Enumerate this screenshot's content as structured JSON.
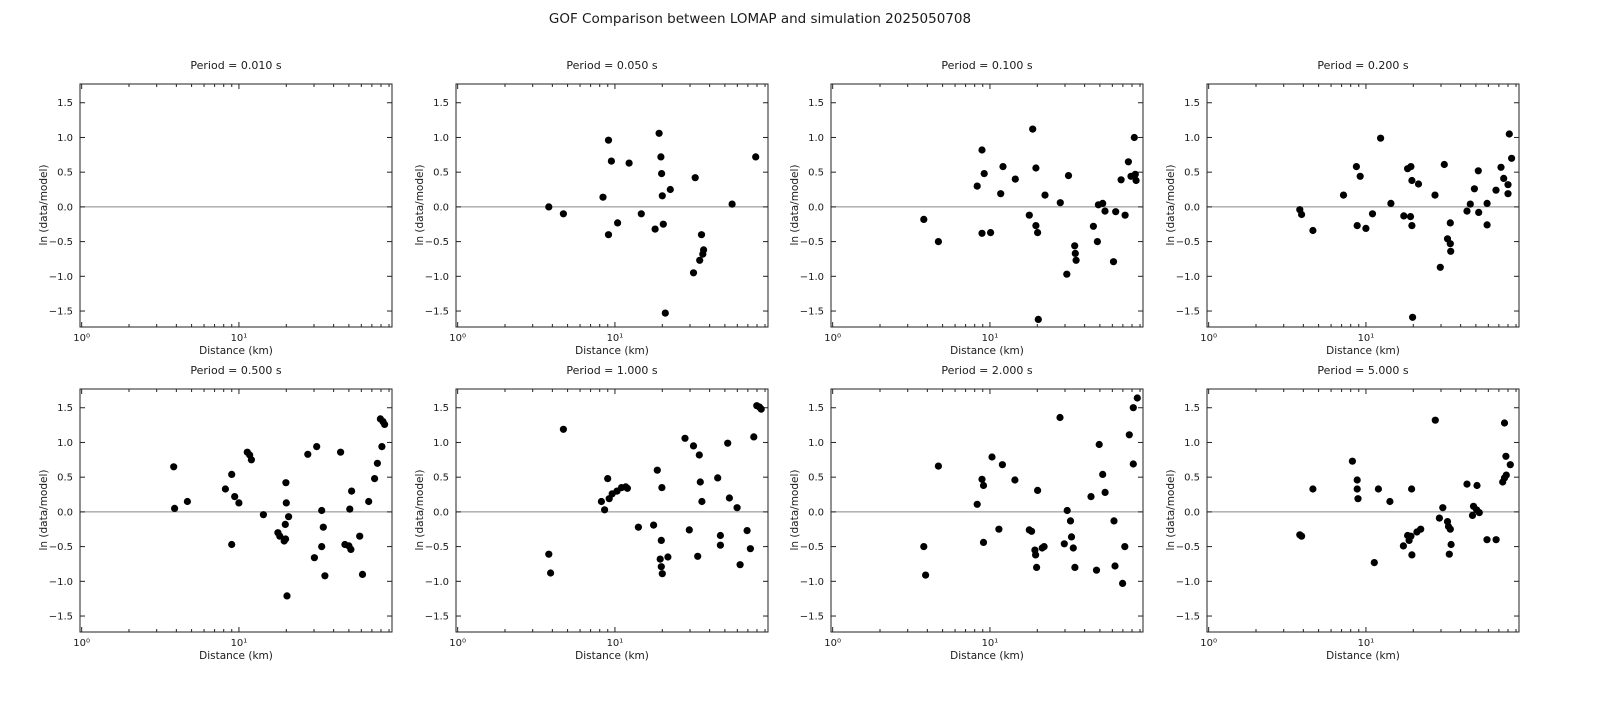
{
  "figure": {
    "title": "GOF Comparison between LOMAP and simulation 2025050708",
    "background": "#ffffff"
  },
  "chart_data": {
    "type": "scatter",
    "layout": {
      "rows": 2,
      "cols": 4,
      "x_scale": "log",
      "x_range": [
        0.976,
        94
      ],
      "y_range": [
        -1.73,
        1.77
      ],
      "grid": false,
      "tick_direction": "in",
      "ticks_all_sides": true
    },
    "xlabel": "Distance (km)",
    "ylabel": "ln (data/model)",
    "x_major_ticks": [
      {
        "value": 1,
        "label": "10⁰"
      },
      {
        "value": 10,
        "label": "10¹"
      }
    ],
    "x_minor_ticks": [
      2,
      3,
      4,
      5,
      6,
      7,
      8,
      9,
      20,
      30,
      40,
      50,
      60,
      70,
      80,
      90
    ],
    "y_ticks": [
      {
        "value": -1.5,
        "label": "−1.5"
      },
      {
        "value": -1.0,
        "label": "−1.0"
      },
      {
        "value": -0.5,
        "label": "−0.5"
      },
      {
        "value": 0.0,
        "label": "0.0"
      },
      {
        "value": 0.5,
        "label": "0.5"
      },
      {
        "value": 1.0,
        "label": "1.0"
      },
      {
        "value": 1.5,
        "label": "1.5"
      }
    ],
    "zero_line": {
      "y": 0,
      "color": "#888888"
    },
    "point_color": "#000000",
    "frame_color": "#222222",
    "subplots": [
      {
        "title": "Period = 0.010 s",
        "points": []
      },
      {
        "title": "Period = 0.050 s",
        "points": [
          [
            3.8,
            0.0
          ],
          [
            4.7,
            -0.1
          ],
          [
            8.4,
            0.14
          ],
          [
            9.1,
            0.96
          ],
          [
            9.5,
            0.66
          ],
          [
            9.1,
            -0.4
          ],
          [
            10.4,
            -0.23
          ],
          [
            12.3,
            0.63
          ],
          [
            14.7,
            -0.1
          ],
          [
            18.0,
            -0.32
          ],
          [
            19.1,
            1.06
          ],
          [
            19.6,
            0.72
          ],
          [
            19.8,
            0.48
          ],
          [
            20.0,
            0.16
          ],
          [
            20.3,
            -0.25
          ],
          [
            20.9,
            -1.53
          ],
          [
            22.5,
            0.25
          ],
          [
            32.4,
            0.42
          ],
          [
            31.6,
            -0.95
          ],
          [
            34.6,
            -0.77
          ],
          [
            36.2,
            -0.68
          ],
          [
            36.6,
            -0.62
          ],
          [
            35.5,
            -0.4
          ],
          [
            55.6,
            0.04
          ],
          [
            78.5,
            0.72
          ]
        ]
      },
      {
        "title": "Period = 0.100 s",
        "points": [
          [
            3.8,
            -0.18
          ],
          [
            4.7,
            -0.5
          ],
          [
            8.3,
            0.3
          ],
          [
            8.9,
            0.82
          ],
          [
            9.2,
            0.48
          ],
          [
            8.9,
            -0.38
          ],
          [
            10.1,
            -0.37
          ],
          [
            11.7,
            0.19
          ],
          [
            12.1,
            0.58
          ],
          [
            14.5,
            0.4
          ],
          [
            17.8,
            -0.12
          ],
          [
            18.7,
            1.12
          ],
          [
            19.6,
            0.56
          ],
          [
            19.6,
            -0.27
          ],
          [
            20.1,
            -0.37
          ],
          [
            22.4,
            0.17
          ],
          [
            20.3,
            -1.62
          ],
          [
            28.0,
            0.06
          ],
          [
            31.6,
            0.45
          ],
          [
            30.8,
            -0.97
          ],
          [
            34.6,
            -0.56
          ],
          [
            34.9,
            -0.67
          ],
          [
            35.3,
            -0.77
          ],
          [
            45.5,
            -0.28
          ],
          [
            48.2,
            -0.5
          ],
          [
            48.9,
            0.03
          ],
          [
            52.1,
            0.05
          ],
          [
            53.9,
            -0.06
          ],
          [
            61.0,
            -0.79
          ],
          [
            63.0,
            -0.07
          ],
          [
            68.2,
            0.39
          ],
          [
            72.3,
            -0.12
          ],
          [
            75.9,
            0.65
          ],
          [
            78.9,
            0.44
          ],
          [
            82.8,
            1.0
          ],
          [
            84.0,
            0.47
          ],
          [
            85.0,
            0.38
          ]
        ]
      },
      {
        "title": "Period = 0.200 s",
        "points": [
          [
            3.8,
            -0.04
          ],
          [
            3.9,
            -0.11
          ],
          [
            4.6,
            -0.34
          ],
          [
            7.2,
            0.17
          ],
          [
            8.7,
            0.58
          ],
          [
            9.2,
            0.44
          ],
          [
            8.8,
            -0.27
          ],
          [
            10.0,
            -0.31
          ],
          [
            11.0,
            -0.1
          ],
          [
            12.4,
            0.99
          ],
          [
            14.4,
            0.05
          ],
          [
            18.4,
            0.55
          ],
          [
            19.3,
            0.58
          ],
          [
            19.6,
            0.38
          ],
          [
            21.6,
            0.33
          ],
          [
            17.4,
            -0.13
          ],
          [
            19.2,
            -0.14
          ],
          [
            19.6,
            -0.27
          ],
          [
            27.5,
            0.17
          ],
          [
            31.5,
            0.61
          ],
          [
            34.4,
            -0.23
          ],
          [
            33.0,
            -0.46
          ],
          [
            34.4,
            -0.53
          ],
          [
            34.6,
            -0.64
          ],
          [
            29.7,
            -0.87
          ],
          [
            19.8,
            -1.59
          ],
          [
            43.9,
            -0.06
          ],
          [
            46.1,
            0.04
          ],
          [
            48.9,
            0.26
          ],
          [
            51.8,
            0.52
          ],
          [
            52.1,
            -0.08
          ],
          [
            58.9,
            0.05
          ],
          [
            58.9,
            -0.26
          ],
          [
            67.1,
            0.24
          ],
          [
            72.2,
            0.57
          ],
          [
            75.1,
            0.41
          ],
          [
            80.0,
            0.32
          ],
          [
            80.0,
            0.19
          ],
          [
            81.5,
            1.05
          ],
          [
            84.3,
            0.7
          ]
        ]
      },
      {
        "title": "Period = 0.500 s",
        "points": [
          [
            3.85,
            0.65
          ],
          [
            3.9,
            0.05
          ],
          [
            4.7,
            0.15
          ],
          [
            8.2,
            0.33
          ],
          [
            9.0,
            0.54
          ],
          [
            9.4,
            0.22
          ],
          [
            10.0,
            0.13
          ],
          [
            9.0,
            -0.47
          ],
          [
            11.3,
            0.86
          ],
          [
            11.7,
            0.82
          ],
          [
            12.0,
            0.75
          ],
          [
            14.3,
            -0.04
          ],
          [
            17.7,
            -0.3
          ],
          [
            18.2,
            -0.35
          ],
          [
            19.4,
            -0.42
          ],
          [
            19.8,
            -0.39
          ],
          [
            19.7,
            -0.18
          ],
          [
            20.0,
            0.13
          ],
          [
            19.9,
            0.42
          ],
          [
            20.7,
            -0.07
          ],
          [
            20.2,
            -1.21
          ],
          [
            27.4,
            0.83
          ],
          [
            30.2,
            -0.66
          ],
          [
            31.2,
            0.94
          ],
          [
            33.6,
            0.02
          ],
          [
            33.6,
            -0.5
          ],
          [
            34.4,
            -0.22
          ],
          [
            35.2,
            -0.92
          ],
          [
            44.3,
            0.86
          ],
          [
            47.2,
            -0.47
          ],
          [
            50.0,
            -0.49
          ],
          [
            50.7,
            0.04
          ],
          [
            51.5,
            -0.54
          ],
          [
            52.0,
            0.3
          ],
          [
            58.6,
            -0.35
          ],
          [
            61.0,
            -0.9
          ],
          [
            66.8,
            0.15
          ],
          [
            72.9,
            0.48
          ],
          [
            75.9,
            0.7
          ],
          [
            79.3,
            1.34
          ],
          [
            82.4,
            1.3
          ],
          [
            84.3,
            1.26
          ],
          [
            81.1,
            0.94
          ]
        ]
      },
      {
        "title": "Period = 1.000 s",
        "points": [
          [
            3.8,
            -0.61
          ],
          [
            3.9,
            -0.88
          ],
          [
            4.7,
            1.19
          ],
          [
            8.2,
            0.15
          ],
          [
            8.6,
            0.03
          ],
          [
            9.0,
            0.48
          ],
          [
            9.2,
            0.19
          ],
          [
            9.6,
            0.26
          ],
          [
            10.3,
            0.3
          ],
          [
            11.0,
            0.35
          ],
          [
            11.7,
            0.36
          ],
          [
            12.0,
            0.34
          ],
          [
            14.1,
            -0.22
          ],
          [
            17.6,
            -0.19
          ],
          [
            18.6,
            0.6
          ],
          [
            19.9,
            0.35
          ],
          [
            19.7,
            -0.41
          ],
          [
            19.4,
            -0.68
          ],
          [
            19.7,
            -0.79
          ],
          [
            20.0,
            -0.89
          ],
          [
            21.7,
            -0.65
          ],
          [
            27.9,
            1.06
          ],
          [
            29.7,
            -0.26
          ],
          [
            31.6,
            0.95
          ],
          [
            34.4,
            0.82
          ],
          [
            34.9,
            0.43
          ],
          [
            35.7,
            0.15
          ],
          [
            33.6,
            -0.64
          ],
          [
            45.0,
            0.49
          ],
          [
            46.8,
            -0.34
          ],
          [
            46.8,
            -0.48
          ],
          [
            52.1,
            0.99
          ],
          [
            53.4,
            0.2
          ],
          [
            59.8,
            0.06
          ],
          [
            62.5,
            -0.76
          ],
          [
            69.2,
            -0.27
          ],
          [
            72.7,
            -0.53
          ],
          [
            76.4,
            1.08
          ],
          [
            79.8,
            1.53
          ],
          [
            83.0,
            1.51
          ],
          [
            85.1,
            1.48
          ]
        ]
      },
      {
        "title": "Period = 2.000 s",
        "points": [
          [
            3.8,
            -0.5
          ],
          [
            3.9,
            -0.91
          ],
          [
            4.7,
            0.66
          ],
          [
            8.3,
            0.11
          ],
          [
            8.9,
            0.47
          ],
          [
            9.1,
            0.38
          ],
          [
            9.1,
            -0.44
          ],
          [
            10.3,
            0.79
          ],
          [
            11.4,
            -0.25
          ],
          [
            12.0,
            0.68
          ],
          [
            14.4,
            0.46
          ],
          [
            17.8,
            -0.26
          ],
          [
            18.4,
            -0.28
          ],
          [
            19.3,
            -0.55
          ],
          [
            19.5,
            -0.62
          ],
          [
            19.8,
            -0.8
          ],
          [
            20.1,
            0.31
          ],
          [
            21.5,
            -0.52
          ],
          [
            22.1,
            -0.5
          ],
          [
            27.9,
            1.36
          ],
          [
            29.7,
            -0.46
          ],
          [
            31.0,
            0.02
          ],
          [
            32.5,
            -0.13
          ],
          [
            33.0,
            -0.36
          ],
          [
            33.9,
            -0.52
          ],
          [
            34.7,
            -0.8
          ],
          [
            43.9,
            0.22
          ],
          [
            49.5,
            0.97
          ],
          [
            47.6,
            -0.84
          ],
          [
            52.1,
            0.54
          ],
          [
            54.0,
            0.28
          ],
          [
            61.5,
            -0.13
          ],
          [
            62.4,
            -0.78
          ],
          [
            69.7,
            -1.03
          ],
          [
            72.0,
            -0.5
          ],
          [
            76.9,
            1.11
          ],
          [
            81.5,
            1.5
          ],
          [
            86.5,
            1.64
          ],
          [
            81.5,
            0.69
          ]
        ]
      },
      {
        "title": "Period = 5.000 s",
        "points": [
          [
            3.8,
            -0.33
          ],
          [
            3.9,
            -0.35
          ],
          [
            4.6,
            0.33
          ],
          [
            8.2,
            0.73
          ],
          [
            8.8,
            0.46
          ],
          [
            8.8,
            0.33
          ],
          [
            8.9,
            0.19
          ],
          [
            12.0,
            0.33
          ],
          [
            11.3,
            -0.73
          ],
          [
            14.2,
            0.15
          ],
          [
            17.3,
            -0.49
          ],
          [
            18.4,
            -0.34
          ],
          [
            18.8,
            -0.41
          ],
          [
            19.3,
            -0.35
          ],
          [
            19.6,
            -0.62
          ],
          [
            19.5,
            0.33
          ],
          [
            21.1,
            -0.29
          ],
          [
            22.3,
            -0.25
          ],
          [
            27.6,
            1.32
          ],
          [
            29.3,
            -0.09
          ],
          [
            30.8,
            0.06
          ],
          [
            33.0,
            -0.14
          ],
          [
            33.5,
            -0.21
          ],
          [
            34.4,
            -0.25
          ],
          [
            34.8,
            -0.47
          ],
          [
            33.9,
            -0.61
          ],
          [
            43.9,
            0.4
          ],
          [
            50.8,
            0.38
          ],
          [
            48.3,
            0.08
          ],
          [
            47.6,
            -0.05
          ],
          [
            50.5,
            0.03
          ],
          [
            52.6,
            -0.01
          ],
          [
            58.8,
            -0.4
          ],
          [
            67.2,
            -0.4
          ],
          [
            76.0,
            1.28
          ],
          [
            77.6,
            0.8
          ],
          [
            82.8,
            0.68
          ],
          [
            74.0,
            0.43
          ],
          [
            76.0,
            0.49
          ],
          [
            78.0,
            0.53
          ]
        ]
      }
    ]
  }
}
